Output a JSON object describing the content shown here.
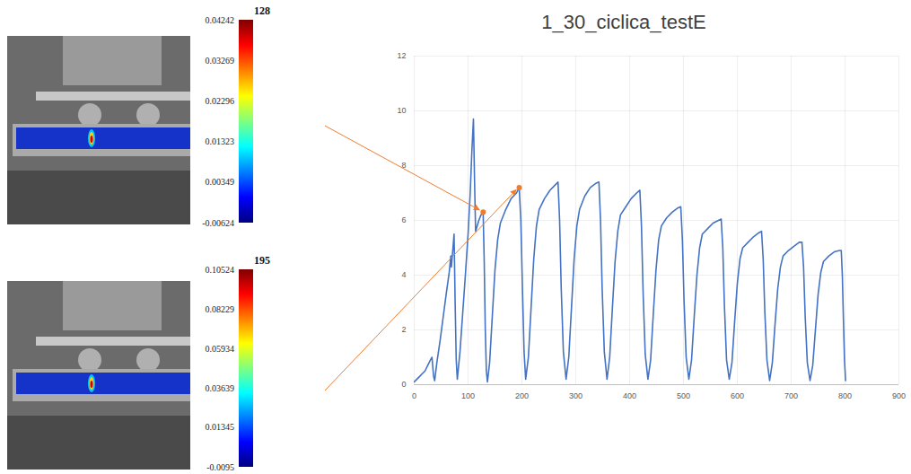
{
  "chart_data": {
    "type": "line",
    "title": "1_30_ciclica_testE",
    "x": [
      0,
      5,
      10,
      15,
      20,
      25,
      30,
      33,
      36,
      38,
      42,
      48,
      54,
      60,
      65,
      68,
      69,
      72,
      74,
      76,
      78,
      80,
      85,
      90,
      95,
      100,
      104,
      107,
      110,
      112,
      114,
      117,
      120,
      124,
      128,
      130,
      132,
      134,
      136,
      140,
      145,
      150,
      155,
      160,
      170,
      180,
      190,
      195,
      198,
      201,
      204,
      207,
      212,
      217,
      222,
      227,
      232,
      242,
      252,
      262,
      267,
      270,
      273,
      277,
      282,
      287,
      292,
      297,
      302,
      307,
      317,
      327,
      337,
      343,
      346,
      349,
      353,
      358,
      363,
      368,
      373,
      378,
      383,
      393,
      403,
      413,
      419,
      422,
      425,
      429,
      434,
      439,
      444,
      449,
      454,
      459,
      469,
      479,
      489,
      495,
      498,
      501,
      505,
      510,
      515,
      520,
      525,
      530,
      535,
      545,
      555,
      565,
      570,
      573,
      576,
      580,
      585,
      590,
      595,
      600,
      605,
      610,
      620,
      630,
      640,
      645,
      648,
      651,
      655,
      660,
      665,
      670,
      675,
      680,
      685,
      695,
      705,
      715,
      720,
      723,
      726,
      730,
      735,
      740,
      745,
      750,
      755,
      760,
      770,
      780,
      790,
      793,
      795,
      797,
      799,
      801
    ],
    "values": [
      0.1,
      0.2,
      0.3,
      0.4,
      0.5,
      0.7,
      0.9,
      1.0,
      0.3,
      0.15,
      0.8,
      1.6,
      2.5,
      3.4,
      4.1,
      4.7,
      4.3,
      5.0,
      5.5,
      3.0,
      0.9,
      0.2,
      1.2,
      2.6,
      4.0,
      5.5,
      7.0,
      8.5,
      9.7,
      7.5,
      5.6,
      5.8,
      6.0,
      6.2,
      6.3,
      4.5,
      2.0,
      0.5,
      0.1,
      0.8,
      2.5,
      4.2,
      5.3,
      5.9,
      6.4,
      6.8,
      7.0,
      7.2,
      6.0,
      3.5,
      1.2,
      0.2,
      1.0,
      2.8,
      4.6,
      5.8,
      6.4,
      6.8,
      7.1,
      7.3,
      7.4,
      6.0,
      3.5,
      1.2,
      0.2,
      1.0,
      2.8,
      4.6,
      5.8,
      6.4,
      6.9,
      7.2,
      7.35,
      7.4,
      6.0,
      3.5,
      1.2,
      0.2,
      1.0,
      2.8,
      4.5,
      5.6,
      6.2,
      6.5,
      6.8,
      7.0,
      7.1,
      5.8,
      3.4,
      1.1,
      0.2,
      0.9,
      2.6,
      4.2,
      5.3,
      5.8,
      6.1,
      6.3,
      6.45,
      6.5,
      5.3,
      3.1,
      1.0,
      0.2,
      0.9,
      2.5,
      4.0,
      5.0,
      5.5,
      5.7,
      5.9,
      6.0,
      6.05,
      5.0,
      2.9,
      0.9,
      0.2,
      0.8,
      2.3,
      3.7,
      4.6,
      5.0,
      5.2,
      5.4,
      5.55,
      5.6,
      4.6,
      2.7,
      0.9,
      0.15,
      0.8,
      2.2,
      3.5,
      4.3,
      4.7,
      4.9,
      5.05,
      5.2,
      5.2,
      4.3,
      2.5,
      0.8,
      0.15,
      0.7,
      2.0,
      3.3,
      4.1,
      4.5,
      4.7,
      4.85,
      4.9,
      4.9,
      4.0,
      2.4,
      0.9,
      0.15
    ],
    "color": "#4472c4",
    "xlim": [
      0,
      900
    ],
    "ylim": [
      0,
      12
    ],
    "xticks": [
      0,
      100,
      200,
      300,
      400,
      500,
      600,
      700,
      800,
      900
    ],
    "yticks": [
      0,
      2,
      4,
      6,
      8,
      10,
      12
    ],
    "grid": true
  },
  "panels": [
    {
      "frame": 128,
      "value": 6.3,
      "colorbar": {
        "range": [
          -0.00624,
          0.04242
        ],
        "ticks": [
          0.04242,
          0.03269,
          0.02296,
          0.01323,
          0.00349,
          -0.00624
        ]
      }
    },
    {
      "frame": 195,
      "value": 7.2,
      "colorbar": {
        "range": [
          -0.0095,
          0.10524
        ],
        "ticks": [
          0.10524,
          0.08229,
          0.05934,
          0.03639,
          0.01345,
          -0.0095
        ]
      }
    }
  ]
}
